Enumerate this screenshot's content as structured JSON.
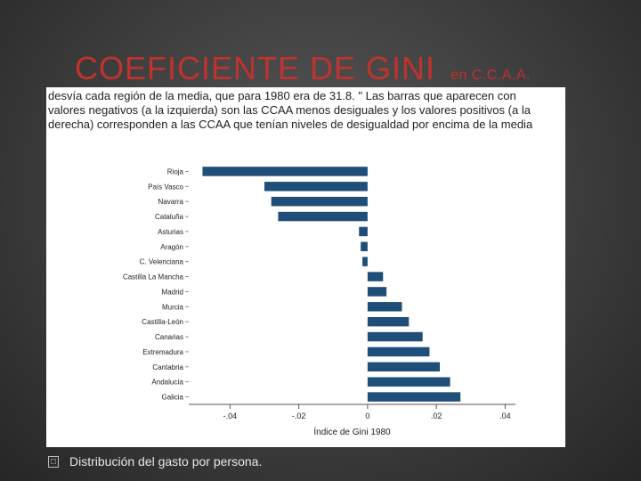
{
  "slide": {
    "title": "COEFICIENTE DE GINI",
    "subtitle": "en C.C.A.A.",
    "caption_lines": [
      "desvía cada región de la media, que para 1980 era de 31.8. \" Las barras que aparecen con",
      "valores negativos (a la izquierda) son las CCAA menos desiguales  y los valores positivos (a la",
      "derecha) corresponden a las CCAA que tenían niveles de desigualdad por encima de la media"
    ],
    "bullet_icon": "checkbox-bullet",
    "bullet_text": "Distribución del gasto por persona."
  },
  "colors": {
    "title": "#c0322d",
    "bar": "#1f4e79",
    "background": "#3d3d3d"
  },
  "chart_data": {
    "type": "bar",
    "orientation": "horizontal",
    "categories": [
      "Rioja",
      "País Vasco",
      "Navarra",
      "Cataluña",
      "Asturias",
      "Aragón",
      "C. Velenciana",
      "Castilla La Mancha",
      "Madrid",
      "Murcia",
      "Castilla-León",
      "Canarias",
      "Extremadura",
      "Cantabria",
      "Andalucía",
      "Galicia"
    ],
    "values": [
      -0.048,
      -0.03,
      -0.028,
      -0.026,
      -0.0025,
      -0.002,
      -0.0015,
      0.0045,
      0.0055,
      0.01,
      0.012,
      0.016,
      0.018,
      0.021,
      0.024,
      0.027
    ],
    "title": "",
    "xlabel": "Índice de Gini 1980",
    "ylabel": "",
    "xlim": [
      -0.052,
      0.043
    ],
    "xticks": [
      -0.04,
      -0.02,
      0,
      0.02,
      0.04
    ],
    "xtick_labels": [
      "-.04",
      "-.02",
      "0",
      ".02",
      ".04"
    ],
    "grid": false,
    "legend": "none"
  }
}
